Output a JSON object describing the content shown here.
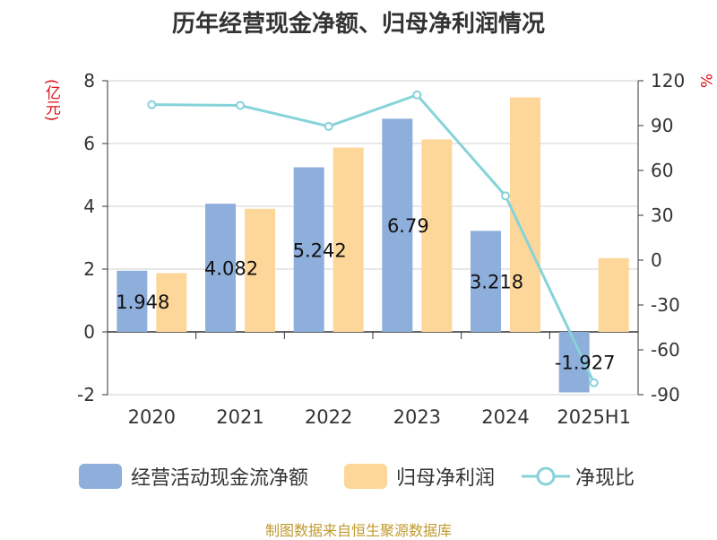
{
  "title": "历年经营现金净额、归母净利润情况",
  "unit_left": "(亿元)",
  "unit_right": "%",
  "footer": "制图数据来自恒生聚源数据库",
  "colors": {
    "operating_cash": "#8eaedb",
    "net_profit": "#fdd699",
    "ratio_line": "#86d3d9",
    "unit_text": "#d9121b",
    "footer_text": "#c09a2e"
  },
  "chart_data": {
    "type": "bar",
    "title": "历年经营现金净额、归母净利润情况",
    "categories": [
      "2020",
      "2021",
      "2022",
      "2023",
      "2024",
      "2025H1"
    ],
    "series": [
      {
        "name": "经营活动现金流净额",
        "type": "bar",
        "axis": "left",
        "values": [
          1.948,
          4.082,
          5.242,
          6.79,
          3.218,
          -1.927
        ],
        "labels": [
          "1.948",
          "4.082",
          "5.242",
          "6.79",
          "3.218",
          "-1.927"
        ]
      },
      {
        "name": "归母净利润",
        "type": "bar",
        "axis": "left",
        "values": [
          1.87,
          3.92,
          5.87,
          6.13,
          7.47,
          2.35
        ]
      },
      {
        "name": "净现比",
        "type": "line",
        "axis": "right",
        "values": [
          104,
          103.5,
          89.5,
          110.5,
          43,
          -82
        ]
      }
    ],
    "y_left": {
      "min": -2,
      "max": 8,
      "ticks": [
        "-2",
        "0",
        "2",
        "4",
        "6",
        "8"
      ],
      "label": "(亿元)"
    },
    "y_right": {
      "min": -90,
      "max": 120,
      "ticks": [
        "-90",
        "-60",
        "-30",
        "0",
        "30",
        "60",
        "90",
        "120"
      ],
      "label": "%"
    },
    "grid": true,
    "legend_position": "bottom"
  },
  "legend": [
    {
      "label": "经营活动现金流净额",
      "kind": "bar"
    },
    {
      "label": "归母净利润",
      "kind": "bar"
    },
    {
      "label": "净现比",
      "kind": "line"
    }
  ]
}
